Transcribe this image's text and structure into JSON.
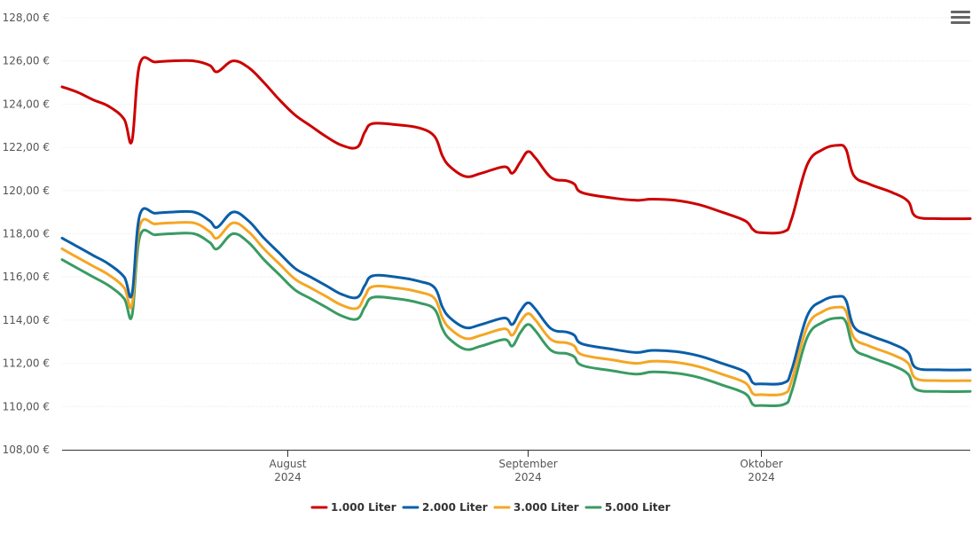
{
  "chart_data": {
    "type": "line",
    "title": "",
    "xlabel": "",
    "ylabel": "",
    "ylim": [
      108,
      128
    ],
    "y_ticks": [
      108,
      110,
      112,
      114,
      116,
      118,
      120,
      122,
      124,
      126,
      128
    ],
    "y_tick_labels": [
      "108,00 €",
      "110,00 €",
      "112,00 €",
      "114,00 €",
      "116,00 €",
      "118,00 €",
      "120,00 €",
      "122,00 €",
      "124,00 €",
      "126,00 €",
      "128,00 €"
    ],
    "xlim": [
      "2024-07-03",
      "2024-10-28"
    ],
    "x_ticks": [
      {
        "date": "2024-08-01",
        "month": "August",
        "year": "2024"
      },
      {
        "date": "2024-09-01",
        "month": "September",
        "year": "2024"
      },
      {
        "date": "2024-10-01",
        "month": "Oktober",
        "year": "2024"
      }
    ],
    "grid": true,
    "legend_position": "bottom",
    "series": [
      {
        "name": "1.000 Liter",
        "color": "#cc0000",
        "points": [
          [
            "2024-07-03",
            124.8
          ],
          [
            "2024-07-05",
            124.55
          ],
          [
            "2024-07-07",
            124.2
          ],
          [
            "2024-07-09",
            123.9
          ],
          [
            "2024-07-11",
            123.3
          ],
          [
            "2024-07-12",
            122.3
          ],
          [
            "2024-07-13",
            125.85
          ],
          [
            "2024-07-15",
            125.95
          ],
          [
            "2024-07-17",
            126.0
          ],
          [
            "2024-07-20",
            126.0
          ],
          [
            "2024-07-22",
            125.8
          ],
          [
            "2024-07-23",
            125.5
          ],
          [
            "2024-07-25",
            126.0
          ],
          [
            "2024-07-27",
            125.7
          ],
          [
            "2024-07-29",
            125.0
          ],
          [
            "2024-07-31",
            124.2
          ],
          [
            "2024-08-02",
            123.5
          ],
          [
            "2024-08-04",
            123.0
          ],
          [
            "2024-08-06",
            122.5
          ],
          [
            "2024-08-08",
            122.1
          ],
          [
            "2024-08-10",
            122.0
          ],
          [
            "2024-08-11",
            122.7
          ],
          [
            "2024-08-12",
            123.1
          ],
          [
            "2024-08-15",
            123.05
          ],
          [
            "2024-08-18",
            122.9
          ],
          [
            "2024-08-20",
            122.5
          ],
          [
            "2024-08-21",
            121.6
          ],
          [
            "2024-08-22",
            121.1
          ],
          [
            "2024-08-24",
            120.65
          ],
          [
            "2024-08-26",
            120.8
          ],
          [
            "2024-08-29",
            121.1
          ],
          [
            "2024-08-30",
            120.8
          ],
          [
            "2024-08-31",
            121.3
          ],
          [
            "2024-09-01",
            121.8
          ],
          [
            "2024-09-02",
            121.5
          ],
          [
            "2024-09-04",
            120.6
          ],
          [
            "2024-09-06",
            120.45
          ],
          [
            "2024-09-07",
            120.3
          ],
          [
            "2024-09-08",
            119.9
          ],
          [
            "2024-09-12",
            119.65
          ],
          [
            "2024-09-15",
            119.55
          ],
          [
            "2024-09-17",
            119.6
          ],
          [
            "2024-09-20",
            119.55
          ],
          [
            "2024-09-23",
            119.35
          ],
          [
            "2024-09-26",
            119.0
          ],
          [
            "2024-09-29",
            118.6
          ],
          [
            "2024-09-30",
            118.2
          ],
          [
            "2024-10-01",
            118.05
          ],
          [
            "2024-10-04",
            118.1
          ],
          [
            "2024-10-05",
            118.7
          ],
          [
            "2024-10-07",
            121.2
          ],
          [
            "2024-10-09",
            121.9
          ],
          [
            "2024-10-11",
            122.1
          ],
          [
            "2024-10-12",
            121.9
          ],
          [
            "2024-10-13",
            120.7
          ],
          [
            "2024-10-15",
            120.3
          ],
          [
            "2024-10-18",
            119.9
          ],
          [
            "2024-10-20",
            119.5
          ],
          [
            "2024-10-21",
            118.8
          ],
          [
            "2024-10-24",
            118.7
          ],
          [
            "2024-10-28",
            118.7
          ]
        ]
      },
      {
        "name": "2.000 Liter",
        "color": "#0a5ea8",
        "points": [
          [
            "2024-07-03",
            117.8
          ],
          [
            "2024-07-05",
            117.4
          ],
          [
            "2024-07-07",
            117.0
          ],
          [
            "2024-07-09",
            116.6
          ],
          [
            "2024-07-11",
            116.0
          ],
          [
            "2024-07-12",
            115.2
          ],
          [
            "2024-07-13",
            118.85
          ],
          [
            "2024-07-15",
            118.95
          ],
          [
            "2024-07-17",
            119.0
          ],
          [
            "2024-07-20",
            119.0
          ],
          [
            "2024-07-22",
            118.6
          ],
          [
            "2024-07-23",
            118.3
          ],
          [
            "2024-07-25",
            119.0
          ],
          [
            "2024-07-27",
            118.6
          ],
          [
            "2024-07-29",
            117.8
          ],
          [
            "2024-07-31",
            117.1
          ],
          [
            "2024-08-02",
            116.4
          ],
          [
            "2024-08-04",
            116.0
          ],
          [
            "2024-08-06",
            115.6
          ],
          [
            "2024-08-08",
            115.2
          ],
          [
            "2024-08-10",
            115.05
          ],
          [
            "2024-08-11",
            115.6
          ],
          [
            "2024-08-12",
            116.05
          ],
          [
            "2024-08-15",
            116.0
          ],
          [
            "2024-08-18",
            115.8
          ],
          [
            "2024-08-20",
            115.5
          ],
          [
            "2024-08-21",
            114.6
          ],
          [
            "2024-08-22",
            114.1
          ],
          [
            "2024-08-24",
            113.65
          ],
          [
            "2024-08-26",
            113.8
          ],
          [
            "2024-08-29",
            114.1
          ],
          [
            "2024-08-30",
            113.8
          ],
          [
            "2024-08-31",
            114.4
          ],
          [
            "2024-09-01",
            114.8
          ],
          [
            "2024-09-02",
            114.5
          ],
          [
            "2024-09-04",
            113.6
          ],
          [
            "2024-09-06",
            113.45
          ],
          [
            "2024-09-07",
            113.3
          ],
          [
            "2024-09-08",
            112.9
          ],
          [
            "2024-09-12",
            112.65
          ],
          [
            "2024-09-15",
            112.5
          ],
          [
            "2024-09-17",
            112.6
          ],
          [
            "2024-09-20",
            112.55
          ],
          [
            "2024-09-23",
            112.35
          ],
          [
            "2024-09-26",
            112.0
          ],
          [
            "2024-09-29",
            111.6
          ],
          [
            "2024-09-30",
            111.1
          ],
          [
            "2024-10-01",
            111.05
          ],
          [
            "2024-10-04",
            111.1
          ],
          [
            "2024-10-05",
            111.7
          ],
          [
            "2024-10-07",
            114.2
          ],
          [
            "2024-10-09",
            114.9
          ],
          [
            "2024-10-11",
            115.1
          ],
          [
            "2024-10-12",
            114.9
          ],
          [
            "2024-10-13",
            113.7
          ],
          [
            "2024-10-15",
            113.3
          ],
          [
            "2024-10-18",
            112.9
          ],
          [
            "2024-10-20",
            112.5
          ],
          [
            "2024-10-21",
            111.8
          ],
          [
            "2024-10-24",
            111.7
          ],
          [
            "2024-10-28",
            111.7
          ]
        ]
      },
      {
        "name": "3.000 Liter",
        "color": "#f5a623",
        "points": [
          [
            "2024-07-03",
            117.3
          ],
          [
            "2024-07-05",
            116.9
          ],
          [
            "2024-07-07",
            116.5
          ],
          [
            "2024-07-09",
            116.1
          ],
          [
            "2024-07-11",
            115.5
          ],
          [
            "2024-07-12",
            114.7
          ],
          [
            "2024-07-13",
            118.35
          ],
          [
            "2024-07-15",
            118.45
          ],
          [
            "2024-07-17",
            118.5
          ],
          [
            "2024-07-20",
            118.5
          ],
          [
            "2024-07-22",
            118.1
          ],
          [
            "2024-07-23",
            117.8
          ],
          [
            "2024-07-25",
            118.5
          ],
          [
            "2024-07-27",
            118.1
          ],
          [
            "2024-07-29",
            117.3
          ],
          [
            "2024-07-31",
            116.6
          ],
          [
            "2024-08-02",
            115.9
          ],
          [
            "2024-08-04",
            115.5
          ],
          [
            "2024-08-06",
            115.1
          ],
          [
            "2024-08-08",
            114.7
          ],
          [
            "2024-08-10",
            114.55
          ],
          [
            "2024-08-11",
            115.1
          ],
          [
            "2024-08-12",
            115.55
          ],
          [
            "2024-08-15",
            115.5
          ],
          [
            "2024-08-18",
            115.3
          ],
          [
            "2024-08-20",
            115.0
          ],
          [
            "2024-08-21",
            114.1
          ],
          [
            "2024-08-22",
            113.6
          ],
          [
            "2024-08-24",
            113.15
          ],
          [
            "2024-08-26",
            113.3
          ],
          [
            "2024-08-29",
            113.6
          ],
          [
            "2024-08-30",
            113.3
          ],
          [
            "2024-08-31",
            113.9
          ],
          [
            "2024-09-01",
            114.3
          ],
          [
            "2024-09-02",
            114.0
          ],
          [
            "2024-09-04",
            113.1
          ],
          [
            "2024-09-06",
            112.95
          ],
          [
            "2024-09-07",
            112.8
          ],
          [
            "2024-09-08",
            112.4
          ],
          [
            "2024-09-12",
            112.15
          ],
          [
            "2024-09-15",
            112.0
          ],
          [
            "2024-09-17",
            112.1
          ],
          [
            "2024-09-20",
            112.05
          ],
          [
            "2024-09-23",
            111.85
          ],
          [
            "2024-09-26",
            111.5
          ],
          [
            "2024-09-29",
            111.1
          ],
          [
            "2024-09-30",
            110.6
          ],
          [
            "2024-10-01",
            110.55
          ],
          [
            "2024-10-04",
            110.6
          ],
          [
            "2024-10-05",
            111.2
          ],
          [
            "2024-10-07",
            113.7
          ],
          [
            "2024-10-09",
            114.4
          ],
          [
            "2024-10-11",
            114.6
          ],
          [
            "2024-10-12",
            114.4
          ],
          [
            "2024-10-13",
            113.2
          ],
          [
            "2024-10-15",
            112.8
          ],
          [
            "2024-10-18",
            112.4
          ],
          [
            "2024-10-20",
            112.0
          ],
          [
            "2024-10-21",
            111.3
          ],
          [
            "2024-10-24",
            111.2
          ],
          [
            "2024-10-28",
            111.2
          ]
        ]
      },
      {
        "name": "5.000 Liter",
        "color": "#3a9b63",
        "points": [
          [
            "2024-07-03",
            116.8
          ],
          [
            "2024-07-05",
            116.4
          ],
          [
            "2024-07-07",
            116.0
          ],
          [
            "2024-07-09",
            115.6
          ],
          [
            "2024-07-11",
            115.0
          ],
          [
            "2024-07-12",
            114.2
          ],
          [
            "2024-07-13",
            117.85
          ],
          [
            "2024-07-15",
            117.95
          ],
          [
            "2024-07-17",
            118.0
          ],
          [
            "2024-07-20",
            118.0
          ],
          [
            "2024-07-22",
            117.6
          ],
          [
            "2024-07-23",
            117.3
          ],
          [
            "2024-07-25",
            118.0
          ],
          [
            "2024-07-27",
            117.6
          ],
          [
            "2024-07-29",
            116.8
          ],
          [
            "2024-07-31",
            116.1
          ],
          [
            "2024-08-02",
            115.4
          ],
          [
            "2024-08-04",
            115.0
          ],
          [
            "2024-08-06",
            114.6
          ],
          [
            "2024-08-08",
            114.2
          ],
          [
            "2024-08-10",
            114.05
          ],
          [
            "2024-08-11",
            114.6
          ],
          [
            "2024-08-12",
            115.05
          ],
          [
            "2024-08-15",
            115.0
          ],
          [
            "2024-08-18",
            114.8
          ],
          [
            "2024-08-20",
            114.5
          ],
          [
            "2024-08-21",
            113.6
          ],
          [
            "2024-08-22",
            113.1
          ],
          [
            "2024-08-24",
            112.65
          ],
          [
            "2024-08-26",
            112.8
          ],
          [
            "2024-08-29",
            113.1
          ],
          [
            "2024-08-30",
            112.8
          ],
          [
            "2024-08-31",
            113.4
          ],
          [
            "2024-09-01",
            113.8
          ],
          [
            "2024-09-02",
            113.5
          ],
          [
            "2024-09-04",
            112.6
          ],
          [
            "2024-09-06",
            112.45
          ],
          [
            "2024-09-07",
            112.3
          ],
          [
            "2024-09-08",
            111.9
          ],
          [
            "2024-09-12",
            111.65
          ],
          [
            "2024-09-15",
            111.5
          ],
          [
            "2024-09-17",
            111.6
          ],
          [
            "2024-09-20",
            111.55
          ],
          [
            "2024-09-23",
            111.35
          ],
          [
            "2024-09-26",
            111.0
          ],
          [
            "2024-09-29",
            110.6
          ],
          [
            "2024-09-30",
            110.1
          ],
          [
            "2024-10-01",
            110.05
          ],
          [
            "2024-10-04",
            110.1
          ],
          [
            "2024-10-05",
            110.7
          ],
          [
            "2024-10-07",
            113.2
          ],
          [
            "2024-10-09",
            113.9
          ],
          [
            "2024-10-11",
            114.1
          ],
          [
            "2024-10-12",
            113.9
          ],
          [
            "2024-10-13",
            112.7
          ],
          [
            "2024-10-15",
            112.3
          ],
          [
            "2024-10-18",
            111.9
          ],
          [
            "2024-10-20",
            111.5
          ],
          [
            "2024-10-21",
            110.8
          ],
          [
            "2024-10-24",
            110.7
          ],
          [
            "2024-10-28",
            110.7
          ]
        ]
      }
    ]
  },
  "menu": {
    "icon": "hamburger-menu-icon",
    "color": "#666666"
  },
  "colors": {
    "grid": "#e6e6e6",
    "axis": "#333333",
    "text": "#555555"
  }
}
